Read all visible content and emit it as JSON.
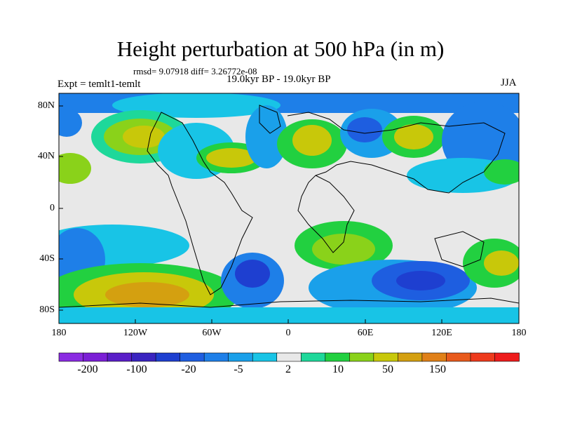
{
  "title": "Height perturbation at 500 hPa (in m)",
  "stats": "rmsd= 9.07918 diff= 3.26772e-08",
  "experiment": "Expt = temlt1-temlt",
  "period": "19.0kyr BP - 19.0kyr BP",
  "season": "JJA",
  "lat_ticks": [
    "80N",
    "40N",
    "0",
    "40S",
    "80S"
  ],
  "lon_ticks": [
    "180",
    "120W",
    "60W",
    "0",
    "60E",
    "120E",
    "180"
  ],
  "colorbar": {
    "colors": [
      "#8a2be2",
      "#7b1fd6",
      "#5a1ec8",
      "#3a24c0",
      "#1e3fd0",
      "#1f5ee0",
      "#1e7fe8",
      "#1aa0ea",
      "#18c4e6",
      "#e8e8e8",
      "#1ed89a",
      "#22d040",
      "#8ad21a",
      "#c8c80a",
      "#d4a010",
      "#e08018",
      "#e85a1c",
      "#ee3a1c",
      "#ee1c1c"
    ],
    "labels": [
      "-200",
      "-100",
      "-20",
      "-5",
      "2",
      "10",
      "50",
      "150"
    ]
  },
  "colors": {
    "background_field": "#e8e8e8",
    "coast": "#000000"
  }
}
